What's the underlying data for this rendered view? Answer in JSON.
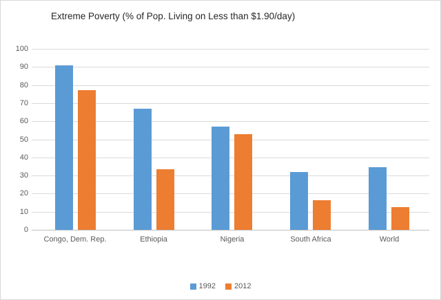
{
  "chart_data": {
    "type": "bar",
    "title": "Extreme Poverty (% of Pop. Living on Less than $1.90/day)",
    "categories": [
      "Congo, Dem. Rep.",
      "Ethiopia",
      "Nigeria",
      "South Africa",
      "World"
    ],
    "series": [
      {
        "name": "1992",
        "color": "#5B9BD5",
        "values": [
          91,
          67,
          57,
          32,
          34.5
        ]
      },
      {
        "name": "2012",
        "color": "#ED7D31",
        "values": [
          77,
          33.5,
          53,
          16.5,
          12.5
        ]
      }
    ],
    "xlabel": "",
    "ylabel": "",
    "ylim": [
      0,
      100
    ],
    "ytick_step": 10,
    "grid": true,
    "legend_position": "bottom",
    "colors": {
      "gridline": "#d9d9d9",
      "axis_line": "#bfbfbf",
      "tick_label": "#595959",
      "title_text": "#262626"
    }
  }
}
